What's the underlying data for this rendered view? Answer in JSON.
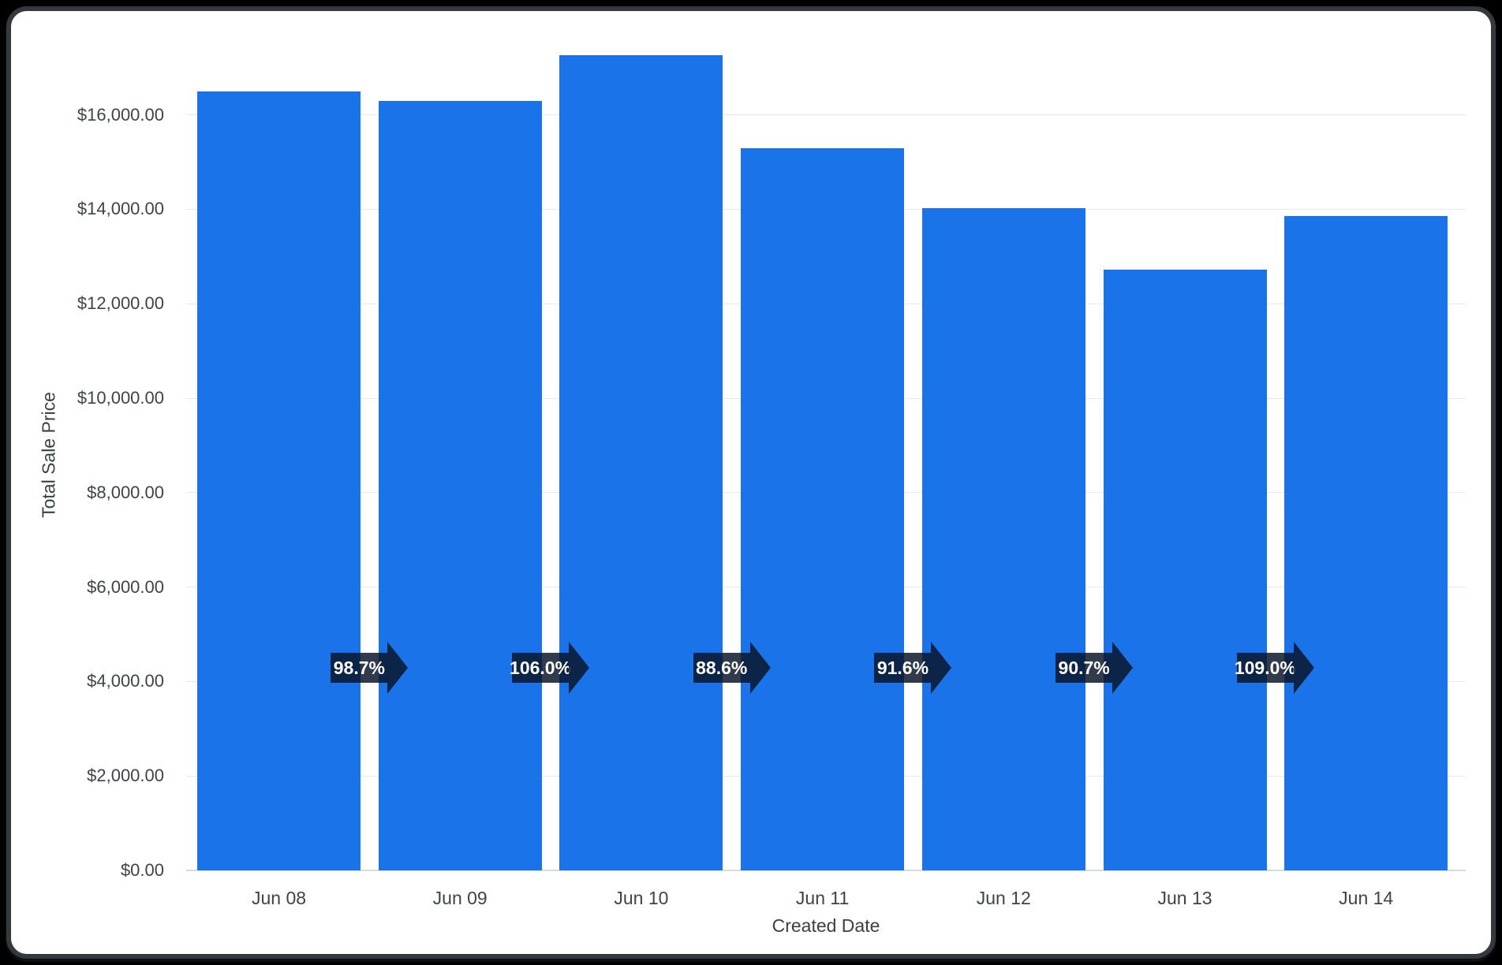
{
  "chart_data": {
    "type": "bar",
    "title": "",
    "x_axis": {
      "title": "Created Date",
      "categories": [
        "Jun 08",
        "Jun 09",
        "Jun 10",
        "Jun 11",
        "Jun 12",
        "Jun 13",
        "Jun 14"
      ]
    },
    "y_axis": {
      "title": "Total Sale Price",
      "range": [
        0,
        17400
      ],
      "ticks": [
        {
          "label": "$0.00",
          "value": 0
        },
        {
          "label": "$2,000.00",
          "value": 2000
        },
        {
          "label": "$4,000.00",
          "value": 4000
        },
        {
          "label": "$6,000.00",
          "value": 6000
        },
        {
          "label": "$8,000.00",
          "value": 8000
        },
        {
          "label": "$10,000.00",
          "value": 10000
        },
        {
          "label": "$12,000.00",
          "value": 12000
        },
        {
          "label": "$14,000.00",
          "value": 14000
        },
        {
          "label": "$16,000.00",
          "value": 16000
        }
      ]
    },
    "series": [
      {
        "name": "Total Sale Price",
        "values": [
          16500,
          16290,
          17270,
          15300,
          14020,
          12715,
          13860
        ]
      }
    ],
    "period_change_labels": [
      "98.7%",
      "106.0%",
      "88.6%",
      "91.6%",
      "90.7%",
      "109.0%"
    ],
    "grid": true,
    "legend": "none",
    "colors": {
      "bar": "#1a73e8",
      "arrow_fill": "#0a1528",
      "arrow_text": "#ffffff",
      "axis_text": "#3f4347",
      "gridline": "#e9e9e9",
      "baseline": "#d8dade",
      "card_background": "#ffffff",
      "card_border": "#34393e",
      "page_background": "#000000"
    }
  }
}
